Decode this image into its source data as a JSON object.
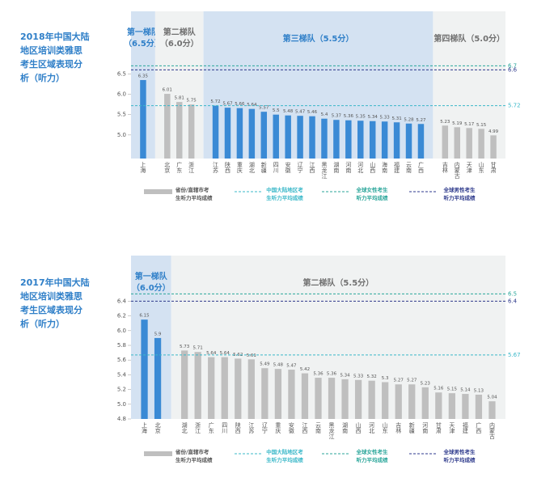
{
  "chart_data": [
    {
      "type": "bar",
      "title_lines": [
        "2018年中国大陆",
        "地区培训类雅思",
        "考生区域表现分",
        "析（听力）"
      ],
      "ylim": [
        4.42,
        8.04
      ],
      "yticks": [
        {
          "value": 5.0,
          "label": "5.0"
        },
        5.5,
        {
          "value": 6.0,
          "label": "6.0"
        },
        6.5
      ],
      "tiers": [
        {
          "name": "第一梯队",
          "score": "（6.5分）",
          "color": "#3a8ad5",
          "label_color": "#2f7fc8",
          "background": "#d4e2f2",
          "categories": [
            "上海"
          ],
          "values": [
            6.35
          ]
        },
        {
          "name": "第二梯队",
          "score": "（6.0分）",
          "color": "#bfbfbf",
          "label_color": "#707070",
          "background": "#f0f2f2",
          "categories": [
            "北京",
            "广东",
            "浙江"
          ],
          "values": [
            6.01,
            5.81,
            5.75
          ]
        },
        {
          "name": "第三梯队",
          "score": "（5.5分）",
          "color": "#3a8ad5",
          "label_color": "#2f7fc8",
          "background": "#d4e2f2",
          "categories": [
            "江苏",
            "陕西",
            "重庆",
            "湖北",
            "新疆",
            "四川",
            "安徽",
            "辽宁",
            "江西",
            "黑龙江",
            "湖南",
            "河南",
            "河北",
            "山西",
            "海南",
            "福建",
            "云南",
            "广西"
          ],
          "values": [
            5.72,
            5.67,
            5.66,
            5.64,
            5.57,
            5.5,
            5.48,
            5.47,
            5.46,
            5.4,
            5.37,
            5.36,
            5.35,
            5.34,
            5.33,
            5.31,
            5.28,
            5.27
          ]
        },
        {
          "name": "第四梯队",
          "score": "（5.0分）",
          "color": "#bfbfbf",
          "label_color": "#707070",
          "background": "#f0f2f2",
          "categories": [
            "吉林",
            "内蒙古",
            "天津",
            "山东",
            "甘肃"
          ],
          "values": [
            5.23,
            5.19,
            5.17,
            5.15,
            4.99
          ]
        }
      ],
      "bar_legend": {
        "name": [
          "省份/直辖市考",
          "生听力平均成绩"
        ],
        "color": "#bfbfbf"
      },
      "reference_lines": [
        {
          "value": 5.72,
          "color": "#3bb8c9",
          "name": [
            "中国大陆地区考",
            "生听力平均成绩"
          ]
        },
        {
          "value": 6.7,
          "color": "#2aa69a",
          "name": [
            "全球女性考生",
            "听力平均成绩"
          ]
        },
        {
          "value": 6.6,
          "color": "#2e3a8c",
          "name": [
            "全球男性考生",
            "听力平均成绩"
          ]
        }
      ]
    },
    {
      "type": "bar",
      "title_lines": [
        "2017年中国大陆",
        "地区培训类雅思",
        "考生区域表现分",
        "析（听力）"
      ],
      "ylim": [
        4.8,
        7.02
      ],
      "yticks": [
        4.8,
        {
          "value": 5.0,
          "label": "5.0"
        },
        5.2,
        5.4,
        5.6,
        5.8,
        {
          "value": 6.0,
          "label": "6.0"
        },
        6.2,
        6.4
      ],
      "tiers": [
        {
          "name": "第一梯队",
          "score": "（6.0分）",
          "color": "#3a8ad5",
          "label_color": "#2f7fc8",
          "background": "#d4e2f2",
          "categories": [
            "上海",
            "北京"
          ],
          "values": [
            6.15,
            5.9
          ]
        },
        {
          "name": "第二梯队",
          "score": "（5.5分）",
          "color": "#bfbfbf",
          "label_color": "#707070",
          "background": "#f0f2f2",
          "categories": [
            "湖北",
            "浙江",
            "广东",
            "四川",
            "陕西",
            "江苏",
            "辽宁",
            "重庆",
            "安徽",
            "江西",
            "云南",
            "黑龙江",
            "湖南",
            "山西",
            "河北",
            "山东",
            "吉林",
            "新疆",
            "河南",
            "甘肃",
            "天津",
            "福建",
            "广西",
            "内蒙古"
          ],
          "values": [
            5.73,
            5.71,
            5.64,
            5.64,
            5.62,
            5.61,
            5.49,
            5.48,
            5.47,
            5.42,
            5.36,
            5.36,
            5.34,
            5.33,
            5.32,
            5.3,
            5.27,
            5.27,
            5.23,
            5.16,
            5.15,
            5.14,
            5.13,
            5.04
          ]
        }
      ],
      "bar_legend": {
        "name": [
          "省份/直辖市考",
          "生听力平均成绩"
        ],
        "color": "#bfbfbf"
      },
      "reference_lines": [
        {
          "value": 5.67,
          "color": "#3bb8c9",
          "name": [
            "中国大陆地区考",
            "生听力平均成绩"
          ]
        },
        {
          "value": 6.5,
          "color": "#2aa69a",
          "name": [
            "全球女性考生",
            "听力平均成绩"
          ]
        },
        {
          "value": 6.4,
          "color": "#2e3a8c",
          "name": [
            "全球男性考生",
            "听力平均成绩"
          ]
        }
      ]
    }
  ]
}
